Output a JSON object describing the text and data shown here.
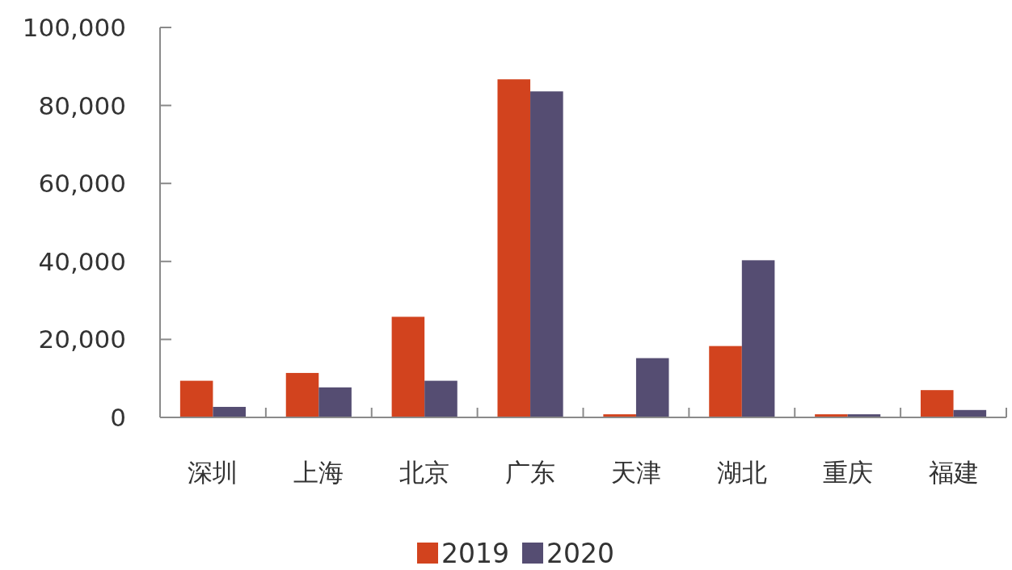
{
  "chart_data": {
    "type": "bar",
    "categories": [
      "深圳",
      "上海",
      "北京",
      "广东",
      "天津",
      "湖北",
      "重庆",
      "福建"
    ],
    "series": [
      {
        "name": "2019",
        "color": "#d2431e",
        "values": [
          9400,
          11400,
          25800,
          86700,
          800,
          18300,
          800,
          7000
        ]
      },
      {
        "name": "2020",
        "color": "#554d72",
        "values": [
          2700,
          7700,
          9400,
          83600,
          15200,
          40300,
          800,
          1900
        ]
      }
    ],
    "ylim": [
      0,
      100000
    ],
    "yticks": [
      {
        "value": 0,
        "label": "0"
      },
      {
        "value": 20000,
        "label": "20,000"
      },
      {
        "value": 40000,
        "label": "40,000"
      },
      {
        "value": 60000,
        "label": "60,000"
      },
      {
        "value": 80000,
        "label": "80,000"
      },
      {
        "value": 100000,
        "label": "100,000"
      }
    ],
    "grid": false,
    "legend": "bottom"
  }
}
